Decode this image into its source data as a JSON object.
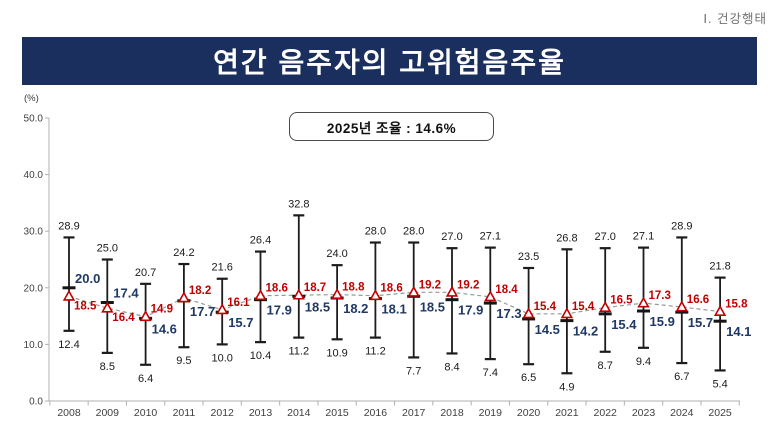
{
  "page": {
    "section_label": "Ⅰ. 건강행태",
    "title": "연간 음주자의 고위험음주율"
  },
  "chart_data": {
    "type": "line",
    "title": "연간 음주자의 고위험음주율",
    "unit_label": "(%)",
    "annotation": "2025년 조율 : 14.6%",
    "ylim": [
      0,
      50
    ],
    "ytick_step": 10,
    "grid": false,
    "legend": "none",
    "categories": [
      "2008",
      "2009",
      "2010",
      "2011",
      "2012",
      "2013",
      "2014",
      "2015",
      "2016",
      "2017",
      "2018",
      "2019",
      "2020",
      "2021",
      "2022",
      "2023",
      "2024",
      "2025"
    ],
    "series": [
      {
        "name": "navy-series",
        "marker": "tick",
        "label_color": "#1f3864",
        "values": [
          20.0,
          17.4,
          14.6,
          17.7,
          15.7,
          17.9,
          18.5,
          18.2,
          18.1,
          18.5,
          17.9,
          17.3,
          14.5,
          14.2,
          15.4,
          15.9,
          15.7,
          14.1
        ]
      },
      {
        "name": "red-triangle-series",
        "marker": "open-triangle",
        "label_color": "#c00000",
        "line_style": "dashed-gray",
        "values": [
          18.5,
          16.4,
          14.9,
          18.2,
          16.1,
          18.6,
          18.7,
          18.8,
          18.6,
          19.2,
          19.2,
          18.4,
          15.4,
          15.4,
          16.5,
          17.3,
          16.6,
          15.8
        ]
      }
    ],
    "ci_upper": [
      28.9,
      25.0,
      20.7,
      24.2,
      21.6,
      26.4,
      32.8,
      24.0,
      28.0,
      28.0,
      27.0,
      27.1,
      23.5,
      26.8,
      27.0,
      27.1,
      28.9,
      21.8
    ],
    "ci_lower": [
      12.4,
      8.5,
      6.4,
      9.5,
      10.0,
      10.4,
      11.2,
      10.9,
      11.2,
      7.7,
      8.4,
      7.4,
      6.5,
      4.9,
      8.7,
      9.4,
      6.7,
      5.4
    ],
    "colors": {
      "title_bar": "#1b2f5e",
      "navy_label": "#1f3864",
      "red_label": "#c00000",
      "error_bar": "#1c1c1c",
      "dashed_line": "#999999",
      "axis": "#b0b0b0",
      "axis_text": "#404040",
      "black_label": "#1a1a1a"
    }
  }
}
